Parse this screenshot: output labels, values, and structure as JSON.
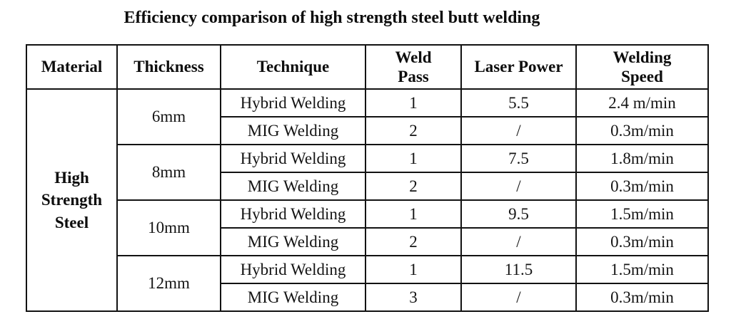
{
  "page": {
    "title": "Efficiency comparison of high strength steel butt welding",
    "colors": {
      "background": "#ffffff",
      "text": "#000000",
      "border": "#121212"
    }
  },
  "table": {
    "headers": [
      "Material",
      "Thickness",
      "Technique",
      "Weld\nPass",
      "Laser Power",
      "Welding\nSpeed"
    ],
    "material": "High\nStrength\nSteel",
    "groups": [
      {
        "thickness": "6mm",
        "rows": [
          {
            "technique": "Hybrid Welding",
            "weld_pass": "1",
            "laser_power": "5.5",
            "welding_speed": "2.4 m/min"
          },
          {
            "technique": "MIG Welding",
            "weld_pass": "2",
            "laser_power": "/",
            "welding_speed": "0.3m/min"
          }
        ]
      },
      {
        "thickness": "8mm",
        "rows": [
          {
            "technique": "Hybrid Welding",
            "weld_pass": "1",
            "laser_power": "7.5",
            "welding_speed": "1.8m/min"
          },
          {
            "technique": "MIG Welding",
            "weld_pass": "2",
            "laser_power": "/",
            "welding_speed": "0.3m/min"
          }
        ]
      },
      {
        "thickness": "10mm",
        "rows": [
          {
            "technique": "Hybrid Welding",
            "weld_pass": "1",
            "laser_power": "9.5",
            "welding_speed": "1.5m/min"
          },
          {
            "technique": "MIG Welding",
            "weld_pass": "2",
            "laser_power": "/",
            "welding_speed": "0.3m/min"
          }
        ]
      },
      {
        "thickness": "12mm",
        "rows": [
          {
            "technique": "Hybrid Welding",
            "weld_pass": "1",
            "laser_power": "11.5",
            "welding_speed": "1.5m/min"
          },
          {
            "technique": "MIG Welding",
            "weld_pass": "3",
            "laser_power": "/",
            "welding_speed": "0.3m/min"
          }
        ]
      }
    ]
  },
  "chart_data": {
    "type": "table",
    "title": "Efficiency comparison of high strength steel butt welding",
    "columns": [
      "Material",
      "Thickness",
      "Technique",
      "Weld Pass",
      "Laser Power",
      "Welding Speed"
    ],
    "rows": [
      [
        "High Strength Steel",
        "6mm",
        "Hybrid Welding",
        "1",
        "5.5",
        "2.4 m/min"
      ],
      [
        "High Strength Steel",
        "6mm",
        "MIG Welding",
        "2",
        "/",
        "0.3m/min"
      ],
      [
        "High Strength Steel",
        "8mm",
        "Hybrid Welding",
        "1",
        "7.5",
        "1.8m/min"
      ],
      [
        "High Strength Steel",
        "8mm",
        "MIG Welding",
        "2",
        "/",
        "0.3m/min"
      ],
      [
        "High Strength Steel",
        "10mm",
        "Hybrid Welding",
        "1",
        "9.5",
        "1.5m/min"
      ],
      [
        "High Strength Steel",
        "10mm",
        "MIG Welding",
        "2",
        "/",
        "0.3m/min"
      ],
      [
        "High Strength Steel",
        "12mm",
        "Hybrid Welding",
        "1",
        "11.5",
        "1.5m/min"
      ],
      [
        "High Strength Steel",
        "12mm",
        "MIG Welding",
        "3",
        "/",
        "0.3m/min"
      ]
    ]
  }
}
